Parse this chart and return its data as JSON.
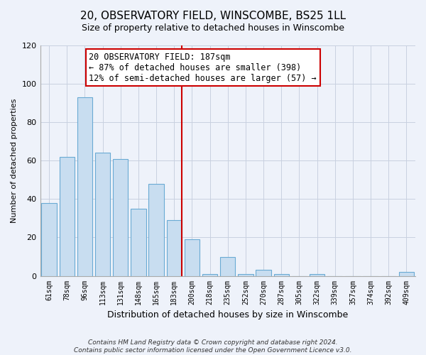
{
  "title": "20, OBSERVATORY FIELD, WINSCOMBE, BS25 1LL",
  "subtitle": "Size of property relative to detached houses in Winscombe",
  "xlabel": "Distribution of detached houses by size in Winscombe",
  "ylabel": "Number of detached properties",
  "bar_labels": [
    "61sqm",
    "78sqm",
    "96sqm",
    "113sqm",
    "131sqm",
    "148sqm",
    "165sqm",
    "183sqm",
    "200sqm",
    "218sqm",
    "235sqm",
    "252sqm",
    "270sqm",
    "287sqm",
    "305sqm",
    "322sqm",
    "339sqm",
    "357sqm",
    "374sqm",
    "392sqm",
    "409sqm"
  ],
  "bar_values": [
    38,
    62,
    93,
    64,
    61,
    35,
    48,
    29,
    19,
    1,
    10,
    1,
    3,
    1,
    0,
    1,
    0,
    0,
    0,
    0,
    2
  ],
  "bar_color": "#c8ddf0",
  "bar_edge_color": "#6aaad4",
  "vline_index": 7,
  "vline_color": "#cc0000",
  "annotation_title": "20 OBSERVATORY FIELD: 187sqm",
  "annotation_line1": "← 87% of detached houses are smaller (398)",
  "annotation_line2": "12% of semi-detached houses are larger (57) →",
  "annotation_box_color": "#ffffff",
  "annotation_box_edge": "#cc0000",
  "ylim": [
    0,
    120
  ],
  "yticks": [
    0,
    20,
    40,
    60,
    80,
    100,
    120
  ],
  "footer1": "Contains HM Land Registry data © Crown copyright and database right 2024.",
  "footer2": "Contains public sector information licensed under the Open Government Licence v3.0.",
  "bg_color": "#eef2fa",
  "grid_color": "#c8d0e0",
  "title_fontsize": 11,
  "subtitle_fontsize": 9
}
